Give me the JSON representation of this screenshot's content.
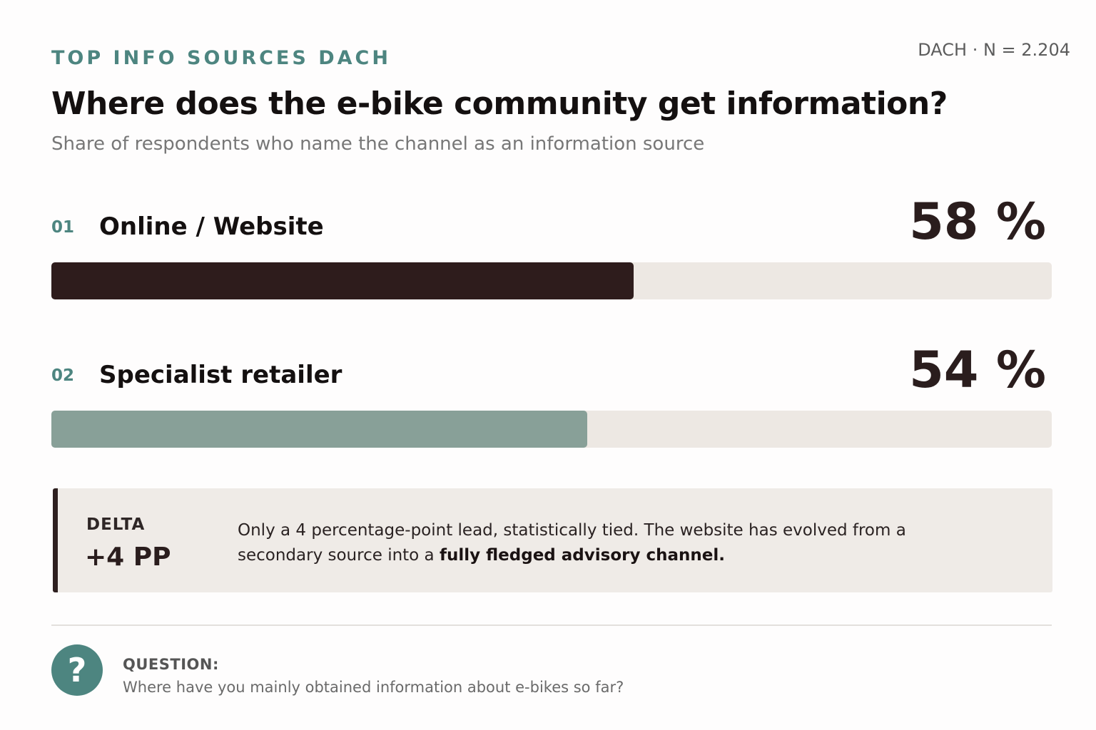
{
  "header": {
    "eyebrow": "TOP INFO SOURCES DACH",
    "meta": "DACH · N = 2.204",
    "title": "Where does the e-bike community get information?",
    "subtitle": "Share of respondents who name the channel as an information source"
  },
  "chart_data": {
    "type": "bar",
    "orientation": "horizontal",
    "title": "Where does the e-bike community get information?",
    "subtitle": "Share of respondents who name the channel as an information source",
    "xlim": [
      0,
      100
    ],
    "items": [
      {
        "rank": "01",
        "category": "Online / Website",
        "value": 58,
        "value_label": "58 %",
        "color": "#2e1c1c"
      },
      {
        "rank": "02",
        "category": "Specialist retailer",
        "value": 54,
        "value_label": "54 %",
        "color": "#88a098"
      }
    ]
  },
  "delta": {
    "label": "DELTA",
    "value": "+4 PP",
    "text_plain": "Only a 4 percentage-point lead, statistically tied. The website has evolved from a secondary source into a ",
    "text_bold": "fully fledged advisory channel."
  },
  "question": {
    "icon": "question-mark-icon",
    "label": "QUESTION:",
    "text": "Where have you mainly obtained information about e-bikes so far?"
  }
}
